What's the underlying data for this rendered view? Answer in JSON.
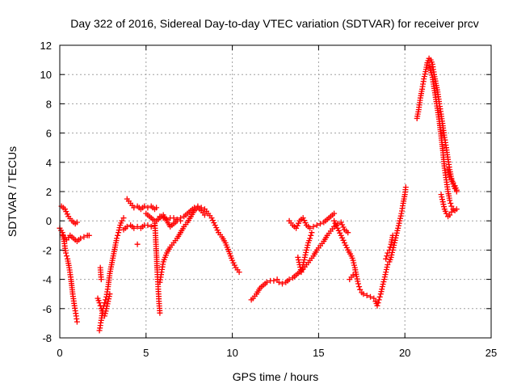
{
  "chart_data": {
    "type": "scatter",
    "title": "Day 322 of 2016, Sidereal Day-to-day VTEC variation (SDTVAR) for receiver prcv",
    "xlabel": "GPS time / hours",
    "ylabel": "SDTVAR / TECUs",
    "xlim": [
      0,
      25
    ],
    "ylim": [
      -8,
      12
    ],
    "xticks": [
      0,
      5,
      10,
      15,
      20,
      25
    ],
    "yticks": [
      -8,
      -6,
      -4,
      -2,
      0,
      2,
      4,
      6,
      8,
      10,
      12
    ],
    "grid": true,
    "marker": "plus",
    "color": "#ff0000",
    "series": [
      {
        "name": "SDTVAR",
        "segments": [
          [
            [
              0.1,
              1.0
            ],
            [
              0.3,
              0.8
            ],
            [
              0.5,
              0.3
            ],
            [
              0.7,
              0.0
            ],
            [
              0.9,
              -0.2
            ],
            [
              1.0,
              -0.1
            ]
          ],
          [
            [
              0.0,
              -0.5
            ],
            [
              0.15,
              -0.8
            ],
            [
              0.25,
              -1.4
            ],
            [
              0.35,
              -2.2
            ],
            [
              0.45,
              -2.6
            ],
            [
              0.55,
              -3.2
            ],
            [
              0.65,
              -4.0
            ],
            [
              0.75,
              -5.0
            ],
            [
              0.85,
              -5.8
            ],
            [
              0.95,
              -6.5
            ],
            [
              1.0,
              -6.9
            ]
          ],
          [
            [
              0.2,
              -1.0
            ],
            [
              0.4,
              -1.3
            ],
            [
              0.6,
              -1.0
            ],
            [
              0.8,
              -1.2
            ],
            [
              1.0,
              -1.4
            ],
            [
              1.2,
              -1.2
            ],
            [
              1.4,
              -1.1
            ],
            [
              1.6,
              -1.0
            ],
            [
              1.7,
              -1.0
            ]
          ],
          [
            [
              2.3,
              -7.5
            ],
            [
              2.4,
              -6.8
            ],
            [
              2.5,
              -6.0
            ],
            [
              2.6,
              -5.6
            ],
            [
              2.7,
              -5.2
            ],
            [
              2.8,
              -4.5
            ],
            [
              2.9,
              -3.6
            ],
            [
              3.0,
              -3.0
            ],
            [
              3.1,
              -2.4
            ],
            [
              3.2,
              -1.8
            ],
            [
              3.3,
              -1.2
            ],
            [
              3.4,
              -0.8
            ],
            [
              3.5,
              -0.3
            ],
            [
              3.6,
              0.0
            ],
            [
              3.7,
              0.2
            ]
          ],
          [
            [
              2.2,
              -5.3
            ],
            [
              2.3,
              -5.6
            ],
            [
              2.4,
              -6.0
            ],
            [
              2.5,
              -6.3
            ],
            [
              2.6,
              -6.5
            ],
            [
              2.7,
              -6.0
            ],
            [
              2.8,
              -5.5
            ],
            [
              2.9,
              -5.0
            ]
          ],
          [
            [
              2.35,
              -3.2
            ],
            [
              2.4,
              -4.0
            ]
          ],
          [
            [
              3.7,
              -0.6
            ],
            [
              3.9,
              -0.4
            ],
            [
              4.1,
              -0.3
            ],
            [
              4.3,
              -0.5
            ],
            [
              4.5,
              -0.4
            ],
            [
              4.7,
              -0.5
            ],
            [
              4.9,
              -0.3
            ],
            [
              5.1,
              -0.3
            ],
            [
              5.3,
              -0.4
            ],
            [
              5.5,
              -0.3
            ]
          ],
          [
            [
              4.5,
              -1.6
            ]
          ],
          [
            [
              3.9,
              1.5
            ],
            [
              4.1,
              1.2
            ],
            [
              4.3,
              0.9
            ],
            [
              4.5,
              1.0
            ],
            [
              4.7,
              0.8
            ],
            [
              4.9,
              1.0
            ],
            [
              5.1,
              0.9
            ],
            [
              5.3,
              1.0
            ],
            [
              5.5,
              0.8
            ],
            [
              5.6,
              0.9
            ]
          ],
          [
            [
              5.0,
              0.5
            ],
            [
              5.2,
              0.3
            ],
            [
              5.4,
              0.1
            ],
            [
              5.6,
              0.0
            ],
            [
              5.8,
              0.2
            ],
            [
              6.0,
              0.4
            ],
            [
              6.2,
              0.0
            ],
            [
              6.4,
              -0.4
            ],
            [
              6.6,
              -0.2
            ],
            [
              6.8,
              0.0
            ],
            [
              7.0,
              0.0
            ]
          ],
          [
            [
              5.5,
              0.0
            ],
            [
              5.55,
              -1.0
            ],
            [
              5.6,
              -2.2
            ],
            [
              5.65,
              -3.5
            ],
            [
              5.7,
              -4.5
            ],
            [
              5.75,
              -5.5
            ],
            [
              5.8,
              -6.3
            ]
          ],
          [
            [
              5.8,
              -4.2
            ],
            [
              5.9,
              -3.5
            ],
            [
              6.0,
              -2.8
            ],
            [
              6.2,
              -2.2
            ],
            [
              6.4,
              -1.8
            ],
            [
              6.6,
              -1.5
            ],
            [
              6.8,
              -1.2
            ],
            [
              7.0,
              -0.8
            ],
            [
              7.2,
              -0.4
            ],
            [
              7.4,
              -0.1
            ],
            [
              7.6,
              0.3
            ],
            [
              7.8,
              0.7
            ],
            [
              8.0,
              0.9
            ],
            [
              8.2,
              0.7
            ],
            [
              8.4,
              0.4
            ]
          ],
          [
            [
              5.8,
              0.3
            ],
            [
              6.0,
              0.2
            ],
            [
              6.2,
              0.1
            ],
            [
              6.4,
              0.2
            ],
            [
              6.6,
              0.2
            ],
            [
              6.8,
              0.1
            ],
            [
              7.0,
              0.2
            ],
            [
              7.2,
              0.3
            ],
            [
              7.4,
              0.5
            ],
            [
              7.6,
              0.7
            ],
            [
              7.8,
              0.9
            ],
            [
              8.0,
              1.0
            ],
            [
              8.2,
              0.9
            ],
            [
              8.4,
              0.8
            ],
            [
              8.6,
              0.5
            ],
            [
              8.8,
              0.2
            ],
            [
              9.0,
              -0.3
            ],
            [
              9.2,
              -0.8
            ],
            [
              9.4,
              -1.1
            ],
            [
              9.6,
              -1.5
            ],
            [
              9.8,
              -2.1
            ],
            [
              10.0,
              -2.7
            ],
            [
              10.2,
              -3.2
            ],
            [
              10.4,
              -3.5
            ]
          ],
          [
            [
              11.1,
              -5.4
            ],
            [
              11.2,
              -5.3
            ],
            [
              11.4,
              -5.0
            ],
            [
              11.6,
              -4.6
            ],
            [
              11.8,
              -4.4
            ],
            [
              12.0,
              -4.2
            ],
            [
              12.2,
              -4.1
            ],
            [
              12.4,
              -4.1
            ],
            [
              12.6,
              -4.0
            ]
          ],
          [
            [
              12.7,
              -4.2
            ],
            [
              12.9,
              -4.3
            ],
            [
              13.1,
              -4.2
            ],
            [
              13.3,
              -4.0
            ],
            [
              13.5,
              -3.9
            ],
            [
              13.7,
              -3.7
            ],
            [
              13.9,
              -3.5
            ],
            [
              14.1,
              -3.3
            ],
            [
              14.3,
              -3.0
            ],
            [
              14.5,
              -2.7
            ],
            [
              14.7,
              -2.4
            ],
            [
              14.9,
              -2.0
            ],
            [
              15.1,
              -1.7
            ],
            [
              15.3,
              -1.4
            ],
            [
              15.5,
              -1.0
            ],
            [
              15.7,
              -0.7
            ],
            [
              15.9,
              -0.4
            ],
            [
              16.1,
              -0.2
            ],
            [
              16.3,
              -0.1
            ],
            [
              16.5,
              -0.6
            ],
            [
              16.7,
              -0.8
            ]
          ],
          [
            [
              13.3,
              0.0
            ],
            [
              13.5,
              -0.3
            ],
            [
              13.7,
              -0.5
            ],
            [
              13.9,
              0.0
            ],
            [
              14.1,
              0.2
            ],
            [
              14.3,
              -0.3
            ],
            [
              14.5,
              -0.5
            ],
            [
              14.7,
              -0.4
            ],
            [
              14.9,
              -0.3
            ],
            [
              15.1,
              -0.2
            ],
            [
              15.3,
              -0.1
            ],
            [
              15.5,
              0.1
            ],
            [
              15.7,
              0.3
            ],
            [
              15.9,
              0.5
            ]
          ],
          [
            [
              13.8,
              -2.5
            ],
            [
              13.9,
              -3.0
            ],
            [
              14.0,
              -3.5
            ],
            [
              14.1,
              -3.0
            ],
            [
              14.2,
              -2.5
            ],
            [
              14.3,
              -2.0
            ],
            [
              14.4,
              -1.5
            ],
            [
              14.5,
              -1.2
            ],
            [
              14.6,
              -0.8
            ]
          ],
          [
            [
              15.9,
              0.0
            ],
            [
              16.1,
              -0.5
            ],
            [
              16.3,
              -1.0
            ],
            [
              16.5,
              -1.5
            ],
            [
              16.7,
              -2.0
            ],
            [
              16.9,
              -2.4
            ],
            [
              17.0,
              -2.7
            ],
            [
              17.1,
              -3.2
            ],
            [
              17.2,
              -3.8
            ],
            [
              17.3,
              -4.3
            ],
            [
              17.4,
              -4.7
            ],
            [
              17.5,
              -4.9
            ],
            [
              17.6,
              -5.0
            ],
            [
              17.8,
              -5.1
            ],
            [
              18.0,
              -5.2
            ],
            [
              18.2,
              -5.3
            ],
            [
              18.3,
              -5.5
            ],
            [
              18.4,
              -5.8
            ],
            [
              18.5,
              -5.4
            ],
            [
              18.6,
              -5.0
            ],
            [
              18.7,
              -4.5
            ],
            [
              18.8,
              -4.0
            ],
            [
              18.9,
              -3.5
            ],
            [
              19.0,
              -3.0
            ],
            [
              19.1,
              -2.8
            ],
            [
              19.2,
              -2.5
            ],
            [
              19.3,
              -2.0
            ],
            [
              19.4,
              -1.5
            ],
            [
              19.5,
              -1.0
            ],
            [
              19.6,
              -0.5
            ],
            [
              19.7,
              0.0
            ],
            [
              19.8,
              0.5
            ],
            [
              19.9,
              1.2
            ],
            [
              20.0,
              1.8
            ],
            [
              20.05,
              2.3
            ]
          ],
          [
            [
              16.8,
              -4.0
            ],
            [
              17.0,
              -3.7
            ]
          ],
          [
            [
              18.9,
              -2.6
            ],
            [
              19.0,
              -2.2
            ],
            [
              19.1,
              -2.0
            ],
            [
              19.2,
              -1.6
            ],
            [
              19.3,
              -1.0
            ]
          ],
          [
            [
              20.7,
              7.0
            ],
            [
              20.8,
              7.6
            ],
            [
              20.9,
              8.4
            ],
            [
              21.0,
              9.0
            ],
            [
              21.1,
              9.7
            ],
            [
              21.2,
              10.2
            ],
            [
              21.3,
              10.8
            ],
            [
              21.4,
              11.1
            ],
            [
              21.5,
              11.0
            ],
            [
              21.6,
              10.7
            ],
            [
              21.7,
              10.0
            ],
            [
              21.8,
              9.4
            ],
            [
              21.9,
              8.8
            ],
            [
              22.0,
              8.0
            ],
            [
              22.1,
              7.3
            ],
            [
              22.2,
              6.5
            ],
            [
              22.3,
              5.7
            ],
            [
              22.4,
              5.0
            ],
            [
              22.5,
              4.2
            ],
            [
              22.6,
              3.5
            ],
            [
              22.7,
              2.9
            ],
            [
              22.8,
              2.5
            ],
            [
              22.9,
              2.2
            ],
            [
              23.0,
              2.0
            ]
          ],
          [
            [
              21.4,
              10.6
            ],
            [
              21.6,
              9.8
            ],
            [
              21.8,
              8.3
            ],
            [
              22.0,
              6.8
            ],
            [
              22.1,
              5.8
            ],
            [
              22.2,
              4.8
            ],
            [
              22.3,
              3.6
            ],
            [
              22.4,
              2.8
            ],
            [
              22.5,
              2.0
            ],
            [
              22.6,
              1.4
            ],
            [
              22.7,
              1.0
            ],
            [
              22.8,
              0.8
            ],
            [
              22.9,
              0.7
            ],
            [
              23.0,
              0.8
            ]
          ],
          [
            [
              22.1,
              1.8
            ],
            [
              22.2,
              1.3
            ],
            [
              22.3,
              0.8
            ],
            [
              22.4,
              0.5
            ],
            [
              22.5,
              0.3
            ],
            [
              22.6,
              0.4
            ],
            [
              22.7,
              0.6
            ],
            [
              22.8,
              0.8
            ]
          ],
          [
            [
              22.5,
              3.5
            ],
            [
              22.6,
              3.0
            ],
            [
              22.7,
              2.8
            ],
            [
              22.8,
              2.6
            ],
            [
              22.9,
              2.4
            ],
            [
              23.0,
              2.1
            ]
          ]
        ]
      }
    ]
  }
}
